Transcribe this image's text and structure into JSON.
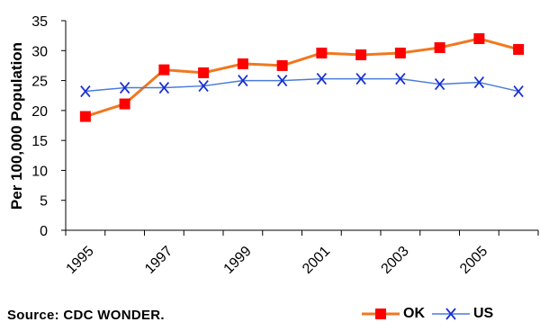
{
  "chart_data": {
    "type": "line",
    "ylabel": "Per 100,000 Population",
    "xlabel": "",
    "title": "",
    "ylim": [
      0,
      35
    ],
    "yticks": [
      0,
      5,
      10,
      15,
      20,
      25,
      30,
      35
    ],
    "x": [
      1995,
      1996,
      1997,
      1998,
      1999,
      2000,
      2001,
      2002,
      2003,
      2004,
      2005,
      2006
    ],
    "x_tick_labels": [
      "1995",
      "1997",
      "1999",
      "2001",
      "2003",
      "2005"
    ],
    "series": [
      {
        "name": "OK",
        "color": "#f07820",
        "marker": "square",
        "marker_color": "#ff0000",
        "values": [
          19.0,
          21.1,
          26.8,
          26.3,
          27.8,
          27.5,
          29.6,
          29.3,
          29.6,
          30.5,
          32.0,
          30.2
        ]
      },
      {
        "name": "US",
        "color": "#4a7bd8",
        "marker": "x",
        "marker_color": "#1a2fd0",
        "values": [
          23.2,
          23.8,
          23.8,
          24.1,
          25.0,
          25.0,
          25.3,
          25.3,
          25.3,
          24.4,
          24.7,
          23.2
        ]
      }
    ],
    "grid": false,
    "legend_position": "bottom-right"
  },
  "source_text": "Source: CDC WONDER."
}
